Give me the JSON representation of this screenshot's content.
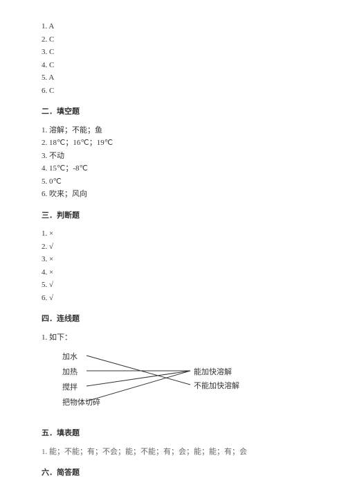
{
  "section1": {
    "items": [
      "1. A",
      "2. C",
      "3. C",
      "4. C",
      "5. A",
      "6. C"
    ]
  },
  "section2": {
    "title": "二．填空题",
    "items": [
      "1. 溶解；不能；鱼",
      "2. 18℃；16℃；19℃",
      "3. 不动",
      "4. 15℃；-8℃",
      "5. 0℃",
      "6. 吹来；风向"
    ]
  },
  "section3": {
    "title": "三．判断题",
    "items": [
      "1. ×",
      "2. √",
      "3. ×",
      "4. ×",
      "5. √",
      "6. √"
    ]
  },
  "section4": {
    "title": "四．连线题",
    "intro": "1. 如下：",
    "left": [
      "加水",
      "加热",
      "搅拌",
      "把物体切碎"
    ],
    "right": [
      "能加快溶解",
      "不能加快溶解"
    ],
    "connections": [
      {
        "from": 0,
        "to": 1
      },
      {
        "from": 1,
        "to": 0
      },
      {
        "from": 2,
        "to": 0
      },
      {
        "from": 3,
        "to": 0
      }
    ],
    "leftX": 55,
    "rightX": 205,
    "leftYs": [
      10,
      32,
      54,
      76
    ],
    "rightYs": [
      32,
      52
    ],
    "line_color": "#333333",
    "line_width": 1
  },
  "section5": {
    "title": "五．填表题",
    "items": [
      "1. 能；不能；有；不会；能；不能；有；会；能；能；有；会"
    ]
  },
  "section6": {
    "title": "六．简答题"
  }
}
